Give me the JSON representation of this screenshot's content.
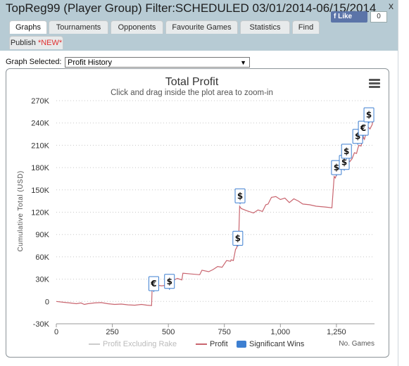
{
  "window": {
    "title": "TopReg99 (Player Group) Filter:SCHEDULED 03/01/2014-06/15/2014",
    "fb_like": "Like",
    "fb_count": "0",
    "close": "x"
  },
  "tabs": [
    {
      "label": "Graphs",
      "active": true
    },
    {
      "label": "Tournaments",
      "active": false
    },
    {
      "label": "Opponents",
      "active": false
    },
    {
      "label": "Favourite Games",
      "active": false
    },
    {
      "label": "Statistics",
      "active": false
    },
    {
      "label": "Find",
      "active": false
    },
    {
      "label": "Publish",
      "badge": "*NEW*",
      "active": false
    }
  ],
  "graph_selected": {
    "label": "Graph Selected:",
    "value": "Profit History"
  },
  "chart_data": {
    "type": "line",
    "title": "Total Profit",
    "subtitle": "Click and drag inside the plot area to zoom-in",
    "ylabel": "Cumulative Total (USD)",
    "xlabel": "No. Games",
    "ylim": [
      -30000,
      270000
    ],
    "xlim": [
      0,
      1420
    ],
    "y_ticks": [
      "-30K",
      "0",
      "30K",
      "60K",
      "90K",
      "120K",
      "150K",
      "180K",
      "210K",
      "240K",
      "270K"
    ],
    "x_ticks": [
      "0",
      "250",
      "500",
      "750",
      "1,000",
      "1,250"
    ],
    "y_tick_values": [
      -30000,
      0,
      30000,
      60000,
      90000,
      120000,
      150000,
      180000,
      210000,
      240000,
      270000
    ],
    "x_tick_values": [
      0,
      250,
      500,
      750,
      1000,
      1250
    ],
    "grid": true,
    "legend": [
      "Profit Excluding Rake",
      "Profit",
      "Significant Wins"
    ],
    "colors": {
      "profit": "#c9656f",
      "profit_ex_rake": "#cccccc",
      "wins": "#3d7fd1",
      "grid": "#c8c8c8"
    },
    "series": [
      {
        "name": "Profit",
        "x": [
          0,
          30,
          60,
          90,
          110,
          125,
          140,
          170,
          200,
          230,
          260,
          290,
          320,
          350,
          380,
          405,
          425,
          428,
          435,
          450,
          470,
          495,
          500,
          505,
          520,
          540,
          560,
          565,
          600,
          640,
          650,
          680,
          700,
          720,
          740,
          760,
          778,
          780,
          790,
          800,
          805,
          810,
          815,
          818,
          825,
          850,
          880,
          900,
          920,
          935,
          945,
          960,
          980,
          1000,
          1020,
          1040,
          1060,
          1080,
          1100,
          1130,
          1160,
          1200,
          1230,
          1240,
          1245,
          1250,
          1255,
          1270,
          1285,
          1290,
          1300,
          1310,
          1320,
          1330,
          1340,
          1345,
          1350,
          1360,
          1370,
          1375,
          1380,
          1390,
          1400,
          1410,
          1415
        ],
        "values": [
          0,
          -1000,
          -2000,
          -3000,
          -2000,
          -4000,
          -3000,
          -2000,
          -1500,
          -3000,
          -4000,
          -3500,
          -4500,
          -5000,
          -4000,
          -5000,
          -5500,
          20000,
          19000,
          22000,
          21000,
          22000,
          20000,
          30000,
          28000,
          31000,
          29000,
          38000,
          37000,
          36000,
          42000,
          40000,
          43000,
          47000,
          46000,
          55000,
          54000,
          56000,
          55000,
          70000,
          72000,
          80000,
          95000,
          128000,
          125000,
          122000,
          119000,
          123000,
          121000,
          130000,
          131000,
          140000,
          141000,
          137000,
          139000,
          133000,
          138000,
          135000,
          131000,
          130000,
          128000,
          127000,
          126000,
          168000,
          166000,
          170000,
          178000,
          180000,
          182000,
          190000,
          193000,
          188000,
          192000,
          200000,
          199000,
          205000,
          210000,
          209000,
          221000,
          218000,
          224000,
          235000,
          232000,
          238000,
          250000
        ]
      },
      {
        "name": "Significant Wins",
        "x": [
          435,
          505,
          810,
          820,
          1250,
          1285,
          1295,
          1345,
          1370,
          1395
        ],
        "values": [
          24000,
          27000,
          85000,
          142000,
          180000,
          187000,
          202000,
          222000,
          233000,
          251000
        ],
        "labels": [
          "€",
          "$",
          "$",
          "$",
          "$",
          "$",
          "$",
          "$",
          "€",
          "$"
        ]
      }
    ]
  }
}
